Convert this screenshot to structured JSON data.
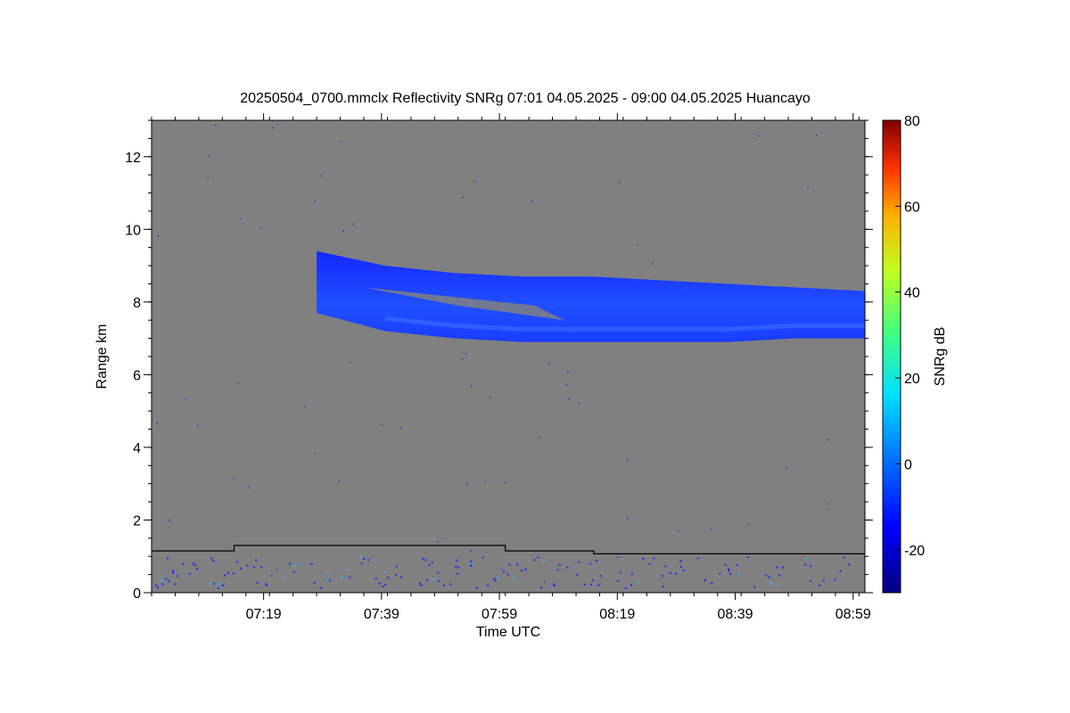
{
  "chart_data": {
    "type": "heatmap",
    "title": "20250504_0700.mmclx Reflectivity SNRg   07:01 04.05.2025 - 09:00 04.05.2025 Huancayo",
    "xlabel": "Time UTC",
    "ylabel": "Range km",
    "x_ticks": [
      "07:19",
      "07:39",
      "07:59",
      "08:19",
      "08:39",
      "08:59"
    ],
    "x_tick_minutes": [
      19,
      39,
      59,
      79,
      99,
      119
    ],
    "xlim_minutes": [
      0,
      121
    ],
    "y_ticks": [
      0,
      2,
      4,
      6,
      8,
      10,
      12
    ],
    "ylim": [
      0,
      13
    ],
    "colorbar": {
      "label": "SNRg dB",
      "ticks": [
        -20,
        0,
        20,
        40,
        60,
        80
      ],
      "range": [
        -30,
        80
      ]
    },
    "background_color": "#808080",
    "echo_layer": {
      "description": "cloud layer",
      "start_minute": 28,
      "end_minute": 121,
      "base_km": [
        7.7,
        7.2,
        7.0,
        6.9,
        6.9,
        6.9,
        6.9,
        7.0,
        7.0
      ],
      "top_km": [
        9.4,
        9.0,
        8.8,
        8.7,
        8.7,
        8.6,
        8.5,
        8.4,
        8.3
      ],
      "snr_db": -15
    },
    "boundary_line_km": [
      {
        "from_minute": 0,
        "to_minute": 14,
        "value": 1.15
      },
      {
        "from_minute": 14,
        "to_minute": 60,
        "value": 1.3
      },
      {
        "from_minute": 60,
        "to_minute": 75,
        "value": 1.15
      },
      {
        "from_minute": 75,
        "to_minute": 121,
        "value": 1.07
      }
    ]
  }
}
